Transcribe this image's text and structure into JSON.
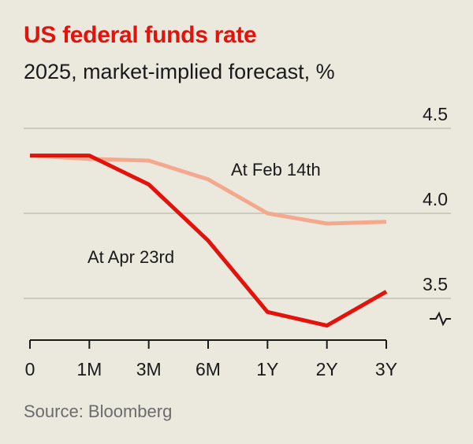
{
  "chart_data": {
    "type": "line",
    "title": "US federal funds rate",
    "subtitle": "2025, market-implied forecast, %",
    "source": "Source: Bloomberg",
    "categories": [
      "0",
      "1M",
      "3M",
      "6M",
      "1Y",
      "2Y",
      "3Y"
    ],
    "yticks": [
      "3.5",
      "4.0",
      "4.5"
    ],
    "ylim": [
      3.25,
      4.5
    ],
    "axis_break": true,
    "series": [
      {
        "name": "At Feb 14th",
        "color": "#f4a98e",
        "values": [
          4.34,
          4.32,
          4.31,
          4.2,
          4.0,
          3.94,
          3.95
        ]
      },
      {
        "name": "At Apr 23rd",
        "color": "#e3120b",
        "values": [
          4.34,
          4.34,
          4.17,
          3.84,
          3.42,
          3.34,
          3.54
        ]
      }
    ]
  }
}
